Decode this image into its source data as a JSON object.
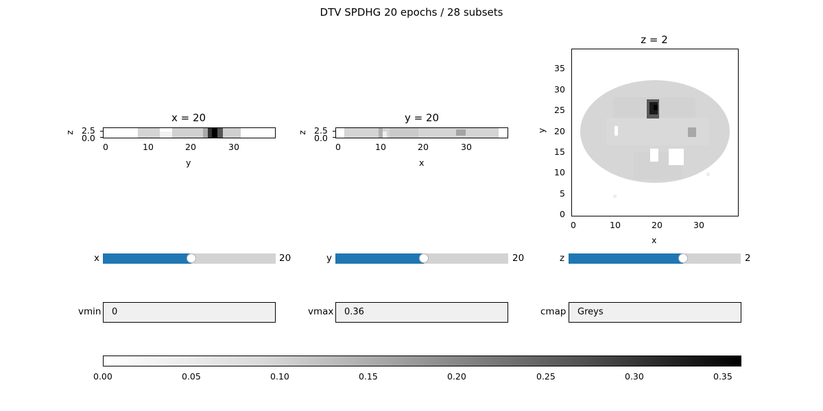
{
  "figure": {
    "title": "DTV SPDHG 20 epochs / 28 subsets"
  },
  "panels": [
    {
      "name": "x-slice",
      "title": "x = 20",
      "xlabel": "y",
      "ylabel": "z",
      "xticks": [
        "0",
        "10",
        "20",
        "30"
      ],
      "yticks": [
        "2.5",
        "0.0"
      ]
    },
    {
      "name": "y-slice",
      "title": "y = 20",
      "xlabel": "x",
      "ylabel": "z",
      "xticks": [
        "0",
        "10",
        "20",
        "30"
      ],
      "yticks": [
        "2.5",
        "0.0"
      ]
    },
    {
      "name": "z-slice",
      "title": "z = 2",
      "xlabel": "x",
      "ylabel": "y",
      "xticks": [
        "0",
        "10",
        "20",
        "30"
      ],
      "yticks": [
        "35",
        "30",
        "25",
        "20",
        "15",
        "10",
        "5",
        "0"
      ]
    }
  ],
  "sliders": [
    {
      "label": "x",
      "value": "20",
      "fraction": 0.513
    },
    {
      "label": "y",
      "value": "20",
      "fraction": 0.513
    },
    {
      "label": "z",
      "value": "2",
      "fraction": 0.667
    }
  ],
  "textboxes": [
    {
      "label": "vmin",
      "value": "0"
    },
    {
      "label": "vmax",
      "value": "0.36"
    },
    {
      "label": "cmap",
      "value": "Greys"
    }
  ],
  "colorbar": {
    "colormap": "Greys",
    "ticks": [
      "0.00",
      "0.05",
      "0.10",
      "0.15",
      "0.20",
      "0.25",
      "0.30",
      "0.35"
    ],
    "range": [
      0,
      0.36
    ]
  },
  "colors": {
    "slider_fill": "#1f77b4",
    "slider_track": "#d3d3d3",
    "textbox_bg": "#f0f0f0"
  }
}
